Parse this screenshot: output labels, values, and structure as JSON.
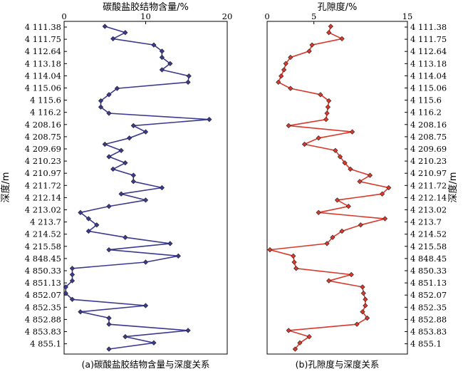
{
  "chart_data": [
    {
      "type": "line",
      "title": "碳酸盐胶结物含量/%",
      "caption": "(a)碳酸盐胶结物含量与深度关系",
      "ylabel": "深度/m",
      "xlim": [
        0,
        20
      ],
      "xticks": [
        "0",
        "10",
        "20"
      ],
      "depth_tick_labels": [
        "4 111.38",
        "4 111.75",
        "4 112.64",
        "4 113.18",
        "4 114.04",
        "4 115.06",
        "4 115.6",
        "4 116.2",
        "4 208.16",
        "4 208.75",
        "4 209.69",
        "4 210.23",
        "4 210.97",
        "4 211.72",
        "4 212.14",
        "4 213.02",
        "4 213.7",
        "4 214.52",
        "4 215.58",
        "4 848.45",
        "4 850.33",
        "4 851.13",
        "4 852.07",
        "4 852.35",
        "4 852.88",
        "4 853.83",
        "4 855.1"
      ],
      "color": "#3b3a8f",
      "series": [
        {
          "values": [
            5,
            7.5,
            6,
            11,
            12,
            12,
            13,
            12,
            15.3,
            15.2,
            6.5,
            5.5,
            4.5,
            4.5,
            5.5,
            17.8,
            8.5,
            10,
            8,
            5,
            7,
            5.5,
            7.5,
            6,
            8.5,
            8.5,
            12,
            7,
            10,
            5.5,
            2,
            3,
            4,
            3,
            7.5,
            13,
            5.5,
            14,
            10,
            1,
            1,
            1,
            0.2,
            0.2,
            1,
            10,
            2,
            5.5,
            5.5,
            15.2,
            7.5,
            11,
            5.5
          ]
        }
      ]
    },
    {
      "type": "line",
      "title": "孔隙度/%",
      "caption": "(b)孔隙度与深度关系",
      "ylabel": "深度/m",
      "xlim": [
        0,
        15
      ],
      "xticks": [
        "0",
        "5",
        "15"
      ],
      "depth_tick_labels": [
        "4 111.38",
        "4 111.75",
        "4 112.64",
        "4 113.18",
        "4 114.04",
        "4 115.06",
        "4 115.6",
        "4 116.2",
        "4 208.16",
        "4 208.75",
        "4 209.69",
        "4 210.23",
        "4 210.97",
        "4 211.72",
        "4 212.14",
        "4 213.02",
        "4 213.7",
        "4 214.52",
        "4 215.58",
        "4 848.45",
        "4 850.33",
        "4 851.13",
        "4 852.07",
        "4 852.35",
        "4 852.88",
        "4 853.83",
        "4 855.1"
      ],
      "color": "#d9382a",
      "series": [
        {
          "values": [
            6.8,
            6.6,
            8,
            4.8,
            4.5,
            2.5,
            2,
            1.8,
            1.5,
            1.2,
            2.5,
            5.7,
            6.6,
            6.5,
            6.4,
            6.3,
            2.3,
            9.1,
            5.5,
            4,
            7.3,
            7.8,
            8.3,
            8.9,
            11,
            9.9,
            13,
            12.3,
            7.5,
            8.7,
            5.5,
            12.6,
            10,
            8,
            7,
            6.4,
            0.3,
            2.8,
            2.9,
            3.1,
            9,
            6.6,
            10.2,
            10.3,
            10.5,
            10.5,
            10.2,
            10.7,
            9.6,
            2.3,
            4.5,
            3.5,
            3
          ]
        }
      ]
    }
  ]
}
